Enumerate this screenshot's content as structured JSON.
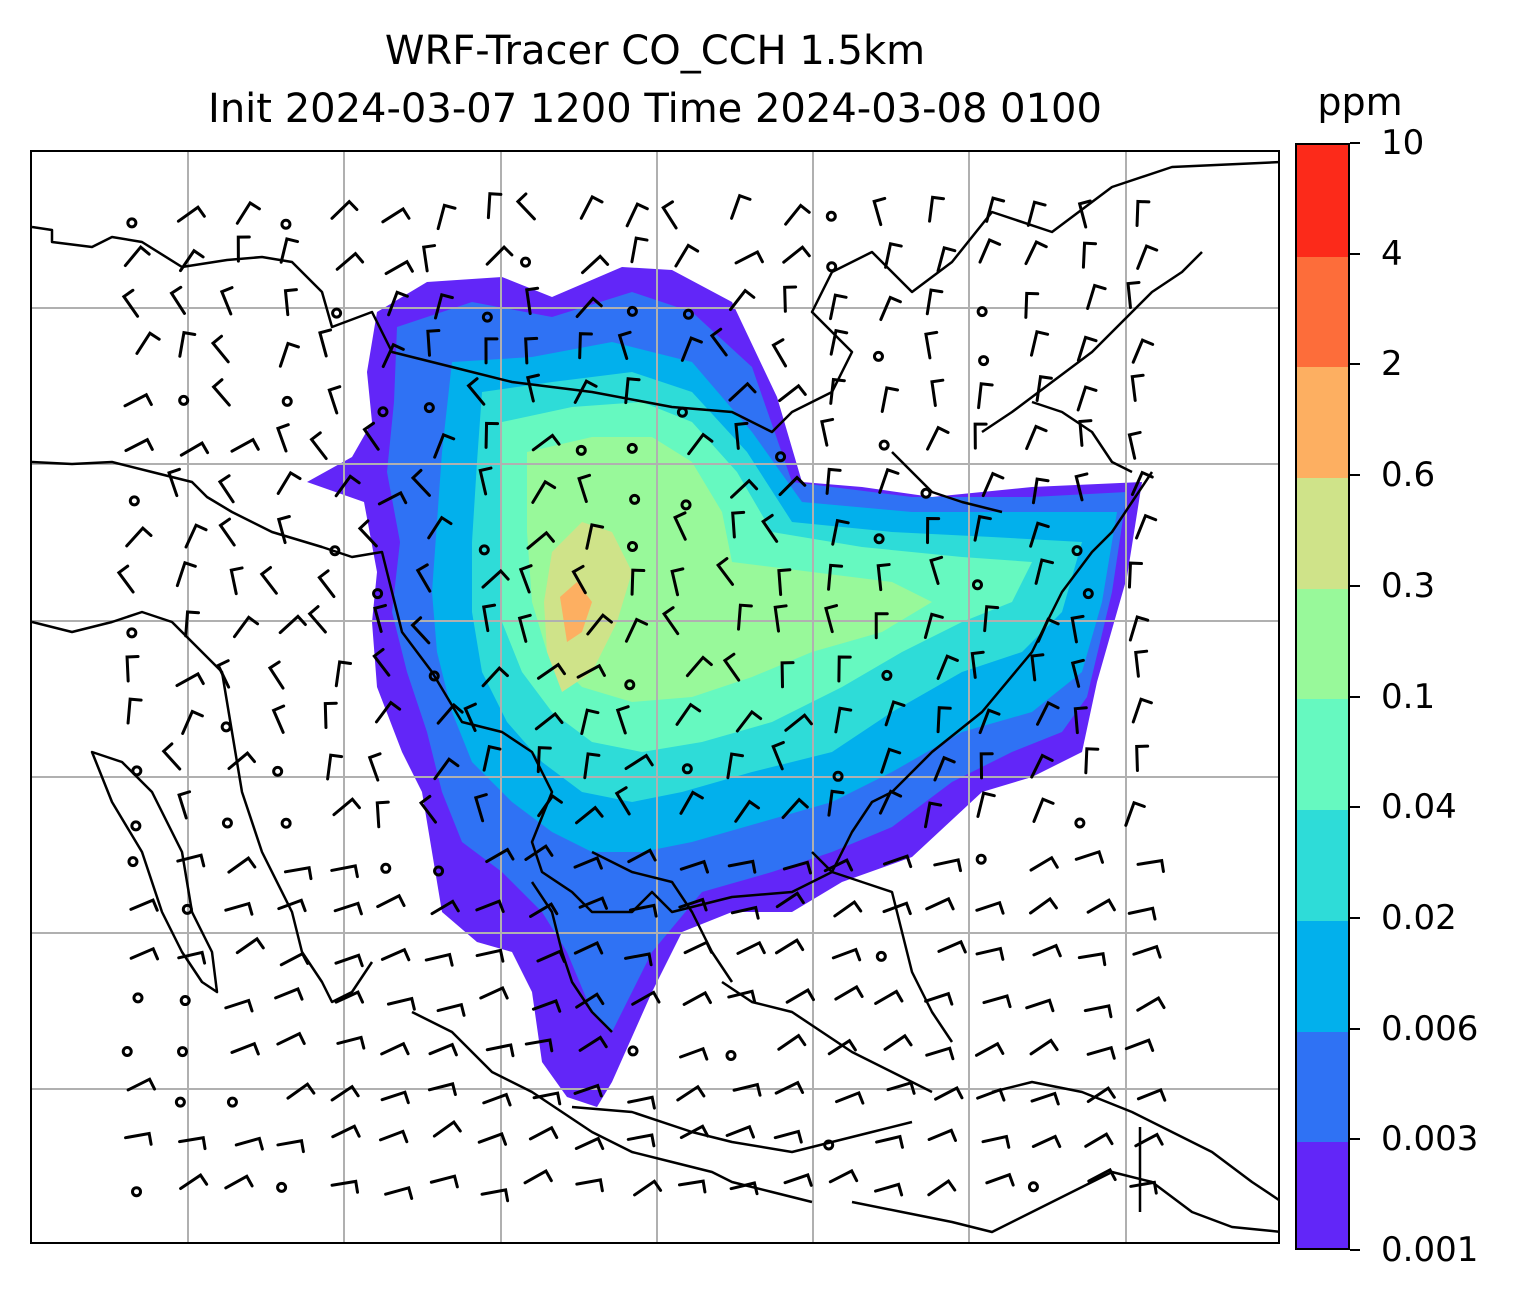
{
  "title": {
    "line1": "WRF-Tracer CO_CCH 1.5km",
    "line2": "Init 2024-03-07 1200 Time 2024-03-08 0100"
  },
  "colorbar": {
    "unit": "ppm",
    "levels": [
      "0.001",
      "0.003",
      "0.006",
      "0.02",
      "0.04",
      "0.1",
      "0.3",
      "0.6",
      "2",
      "4",
      "10"
    ],
    "colors": [
      "#6226f8",
      "#2f72f4",
      "#02b0ec",
      "#2edcd8",
      "#66f9c0",
      "#98f99a",
      "#cfe389",
      "#fdaf61",
      "#fd6d3a",
      "#fc2a1a"
    ]
  },
  "map": {
    "field": "CO_CCH",
    "level": "1.5km",
    "gridlines": true,
    "coastlines": true,
    "wind_barbs": true,
    "gridline_color": "#b0b0b0",
    "region": "East and Southeast Asia"
  }
}
